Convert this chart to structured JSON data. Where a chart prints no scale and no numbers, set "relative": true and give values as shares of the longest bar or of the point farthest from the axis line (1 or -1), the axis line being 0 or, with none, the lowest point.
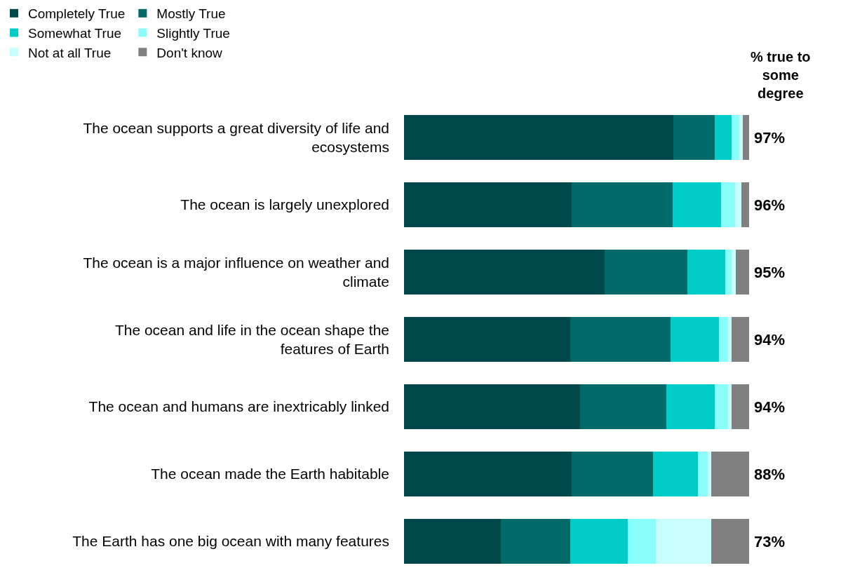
{
  "chart_data": {
    "type": "bar",
    "orientation": "horizontal",
    "stacked": true,
    "relative": true,
    "legend": "top",
    "categories": [
      "The ocean supports a great diversity of life and ecosystems",
      "The ocean is largely unexplored",
      "The ocean is a major influence on weather and climate",
      "The ocean and life in the ocean shape the features of Earth",
      "The ocean and humans are inextricably linked",
      "The ocean made the Earth habitable",
      "The Earth has one big ocean with many features"
    ],
    "series": [
      {
        "name": "Completely True",
        "color": "#00494a",
        "values": [
          0.781,
          0.486,
          0.582,
          0.481,
          0.511,
          0.486,
          0.281
        ]
      },
      {
        "name": "Mostly True",
        "color": "#006b68",
        "values": [
          0.12,
          0.293,
          0.239,
          0.291,
          0.249,
          0.236,
          0.2
        ]
      },
      {
        "name": "Somewhat True",
        "color": "#00cdc7",
        "values": [
          0.049,
          0.14,
          0.109,
          0.14,
          0.141,
          0.13,
          0.168
        ]
      },
      {
        "name": "Slightly True",
        "color": "#8afff9",
        "values": [
          0.021,
          0.041,
          0.02,
          0.028,
          0.039,
          0.029,
          0.081
        ]
      },
      {
        "name": "Not at all True",
        "color": "#c8fffd",
        "values": [
          0.01,
          0.018,
          0.011,
          0.01,
          0.01,
          0.01,
          0.16
        ]
      },
      {
        "name": "Don't know",
        "color": "#808080",
        "values": [
          0.019,
          0.022,
          0.039,
          0.05,
          0.05,
          0.109,
          0.11
        ]
      }
    ],
    "annotations": [
      "% true to some degree",
      "97%",
      "96%",
      "95%",
      "94%",
      "94%",
      "88%",
      "73%"
    ]
  }
}
